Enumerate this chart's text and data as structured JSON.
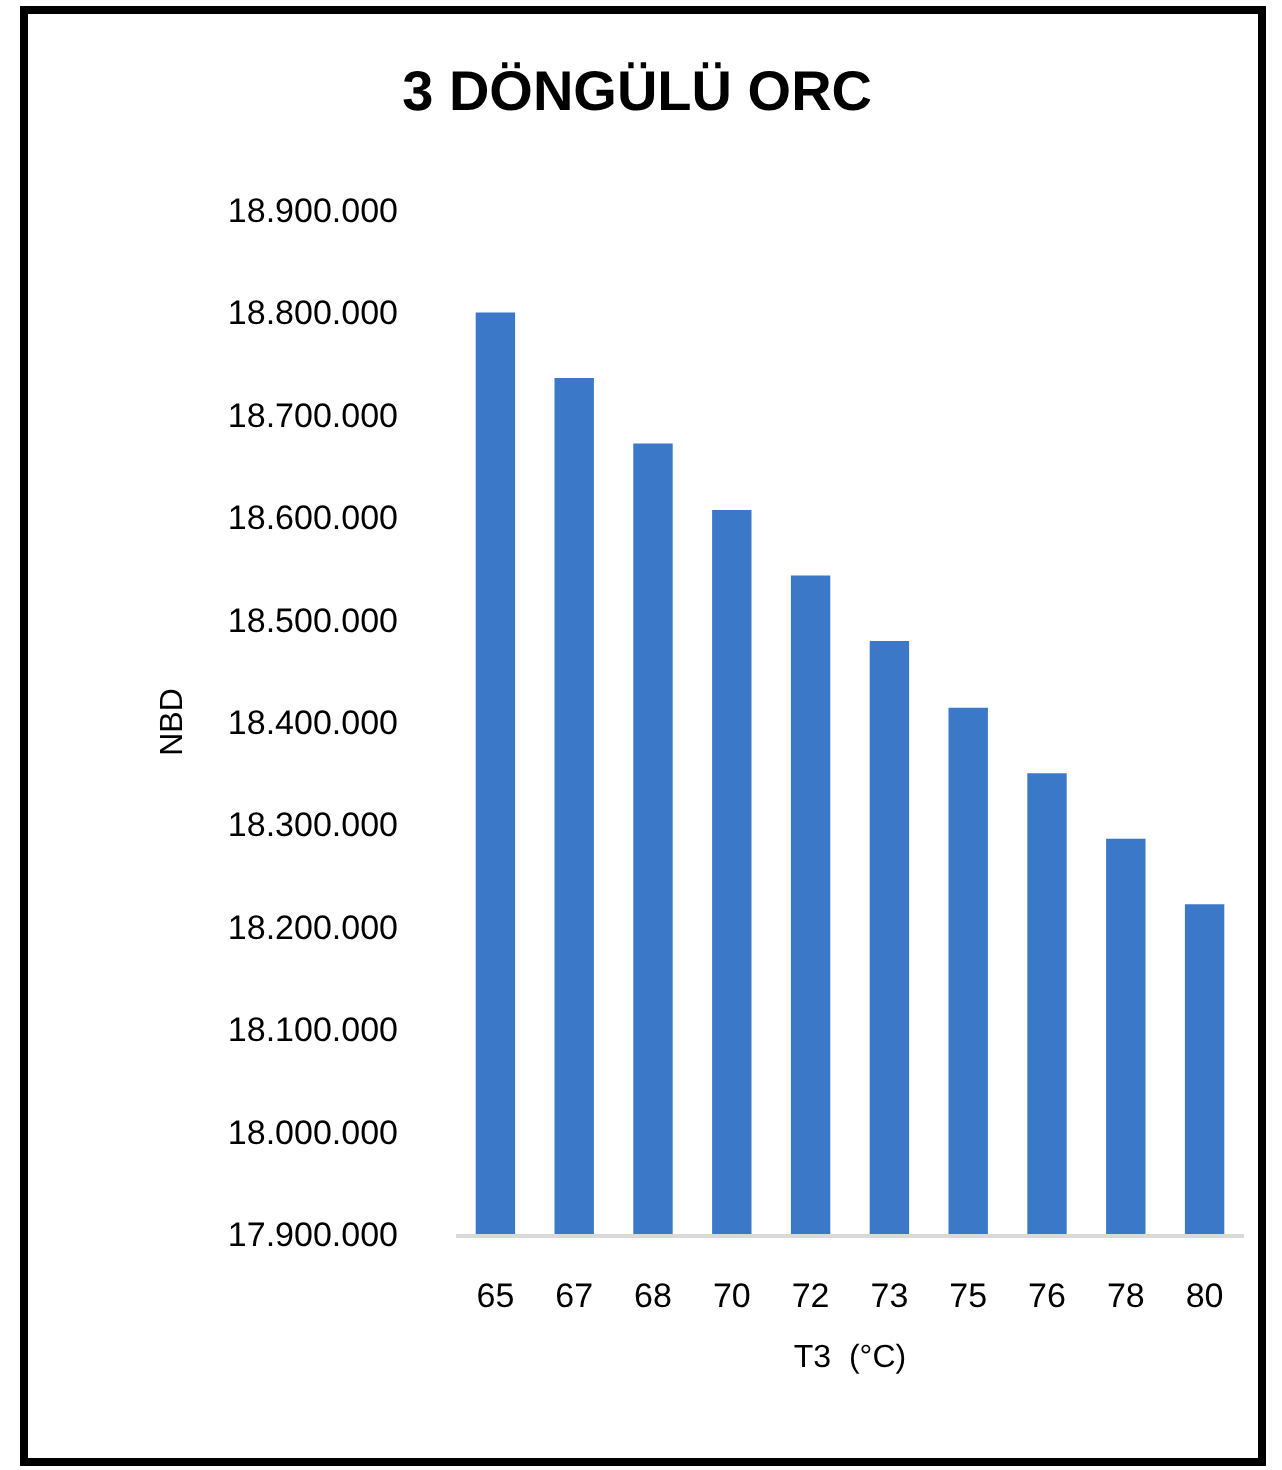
{
  "chart_data": {
    "type": "bar",
    "title": "3 DÖNGÜLÜ ORC",
    "xlabel": "T3  (°C)",
    "ylabel": "NBD",
    "categories": [
      "65",
      "67",
      "68",
      "70",
      "72",
      "73",
      "75",
      "76",
      "78",
      "80"
    ],
    "values": [
      18800000,
      18736000,
      18672000,
      18607000,
      18543000,
      18479000,
      18414000,
      18350000,
      18286000,
      18222000
    ],
    "color": "#3b78c8",
    "ylim": [
      17900000,
      18900000
    ],
    "yticks": [
      {
        "value": 17900000,
        "label": "17.900.000"
      },
      {
        "value": 18000000,
        "label": "18.000.000"
      },
      {
        "value": 18100000,
        "label": "18.100.000"
      },
      {
        "value": 18200000,
        "label": "18.200.000"
      },
      {
        "value": 18300000,
        "label": "18.300.000"
      },
      {
        "value": 18400000,
        "label": "18.400.000"
      },
      {
        "value": 18500000,
        "label": "18.500.000"
      },
      {
        "value": 18600000,
        "label": "18.600.000"
      },
      {
        "value": 18700000,
        "label": "18.700.000"
      },
      {
        "value": 18800000,
        "label": "18.800.000"
      },
      {
        "value": 18900000,
        "label": "18.900.000"
      }
    ],
    "grid": false
  }
}
